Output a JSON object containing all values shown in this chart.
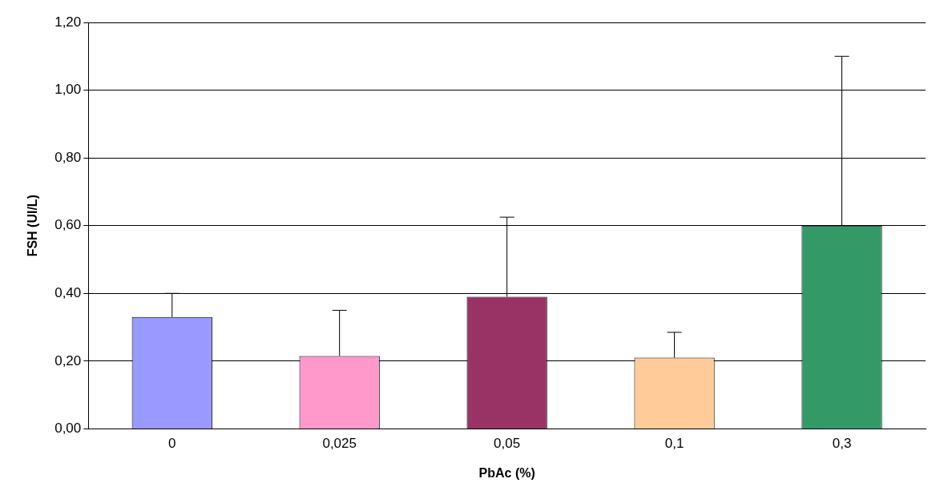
{
  "chart_data": {
    "type": "bar",
    "xlabel": "PbAc (%)",
    "ylabel": "FSH (UI/L)",
    "categories": [
      "0",
      "0,025",
      "0,05",
      "0,1",
      "0,3"
    ],
    "values": [
      0.33,
      0.215,
      0.39,
      0.21,
      0.6
    ],
    "colors": [
      "#9999ff",
      "#ff99cc",
      "#993366",
      "#ffcc99",
      "#339966"
    ],
    "errors": [
      [
        0.33,
        0.4
      ],
      [
        0.215,
        0.35
      ],
      [
        0.39,
        0.625
      ],
      [
        0.21,
        0.285
      ],
      [
        0.6,
        1.1
      ]
    ],
    "ylim": [
      0,
      1.2
    ],
    "yticks": [
      {
        "value": 0,
        "label": "0,00"
      },
      {
        "value": 0.2,
        "label": "0,20"
      },
      {
        "value": 0.4,
        "label": "0,40"
      },
      {
        "value": 0.6,
        "label": "0,60"
      },
      {
        "value": 0.8,
        "label": "0,80"
      },
      {
        "value": 1,
        "label": "1,00"
      },
      {
        "value": 1.2,
        "label": "1,20"
      }
    ],
    "grid": "y",
    "legend": false
  }
}
